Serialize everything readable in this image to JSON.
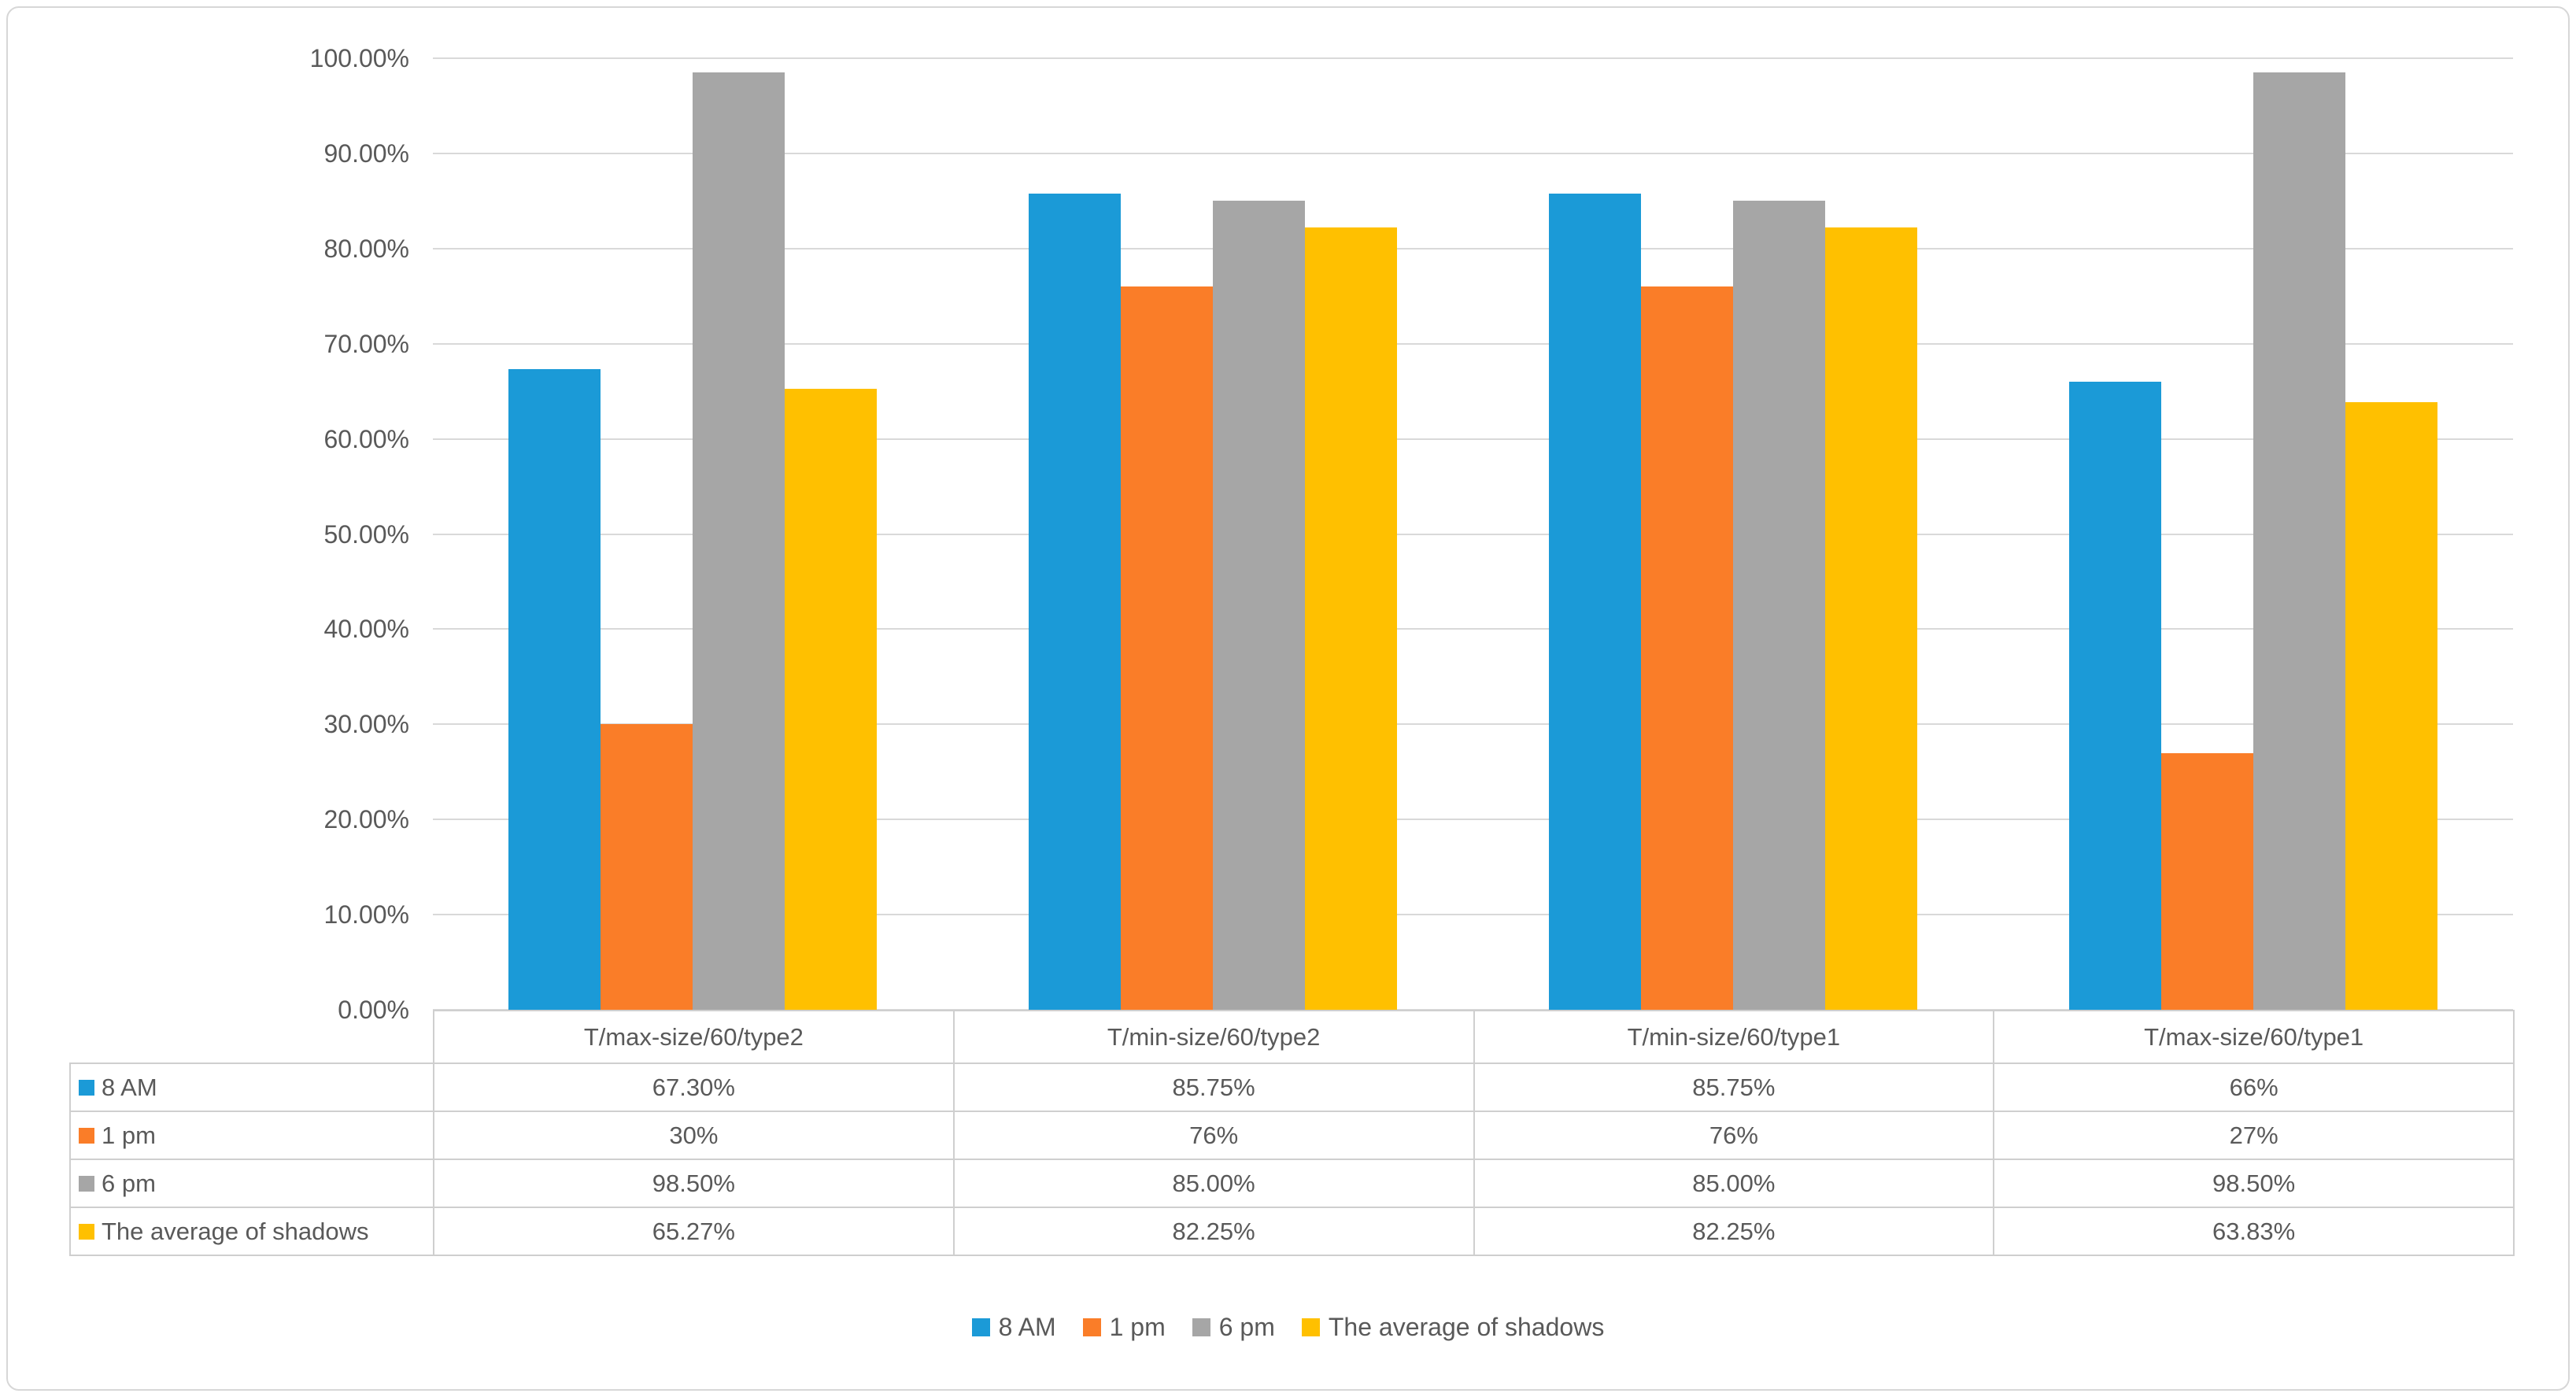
{
  "figure": {
    "background_color": "#ffffff",
    "frame_border_color": "#d7d7d7"
  },
  "chart_data": {
    "type": "bar",
    "title": "",
    "xlabel": "",
    "ylabel": "",
    "categories": [
      "T/max-size/60/type2",
      "T/min-size/60/type2",
      "T/min-size/60/type1",
      "T/max-size/60/type1"
    ],
    "series": [
      {
        "name": "8 AM",
        "color": "#1b9ad7",
        "values": [
          67.3,
          85.75,
          85.75,
          66
        ],
        "display": [
          "67.30%",
          "85.75%",
          "85.75%",
          "66%"
        ]
      },
      {
        "name": "1 pm",
        "color": "#fa7d28",
        "values": [
          30,
          76,
          76,
          27
        ],
        "display": [
          "30%",
          "76%",
          "76%",
          "27%"
        ]
      },
      {
        "name": "6 pm",
        "color": "#a6a6a6",
        "values": [
          98.5,
          85.0,
          85.0,
          98.5
        ],
        "display": [
          "98.50%",
          "85.00%",
          "85.00%",
          "98.50%"
        ]
      },
      {
        "name": "The average of shadows",
        "color": "#ffc000",
        "values": [
          65.27,
          82.25,
          82.25,
          63.83
        ],
        "display": [
          "65.27%",
          "82.25%",
          "82.25%",
          "63.83%"
        ]
      }
    ],
    "ylim": [
      0,
      100
    ],
    "y_tick_step": 10,
    "y_tick_labels": [
      "0.00%",
      "10.00%",
      "20.00%",
      "30.00%",
      "40.00%",
      "50.00%",
      "60.00%",
      "70.00%",
      "80.00%",
      "90.00%",
      "100.00%"
    ],
    "grid": true,
    "gridline_color": "#d9d9d9",
    "legend_position": "bottom",
    "legend_labels": [
      "8 AM",
      "1 pm",
      "6 pm",
      "The average of shadows"
    ],
    "data_table_shown": true
  }
}
